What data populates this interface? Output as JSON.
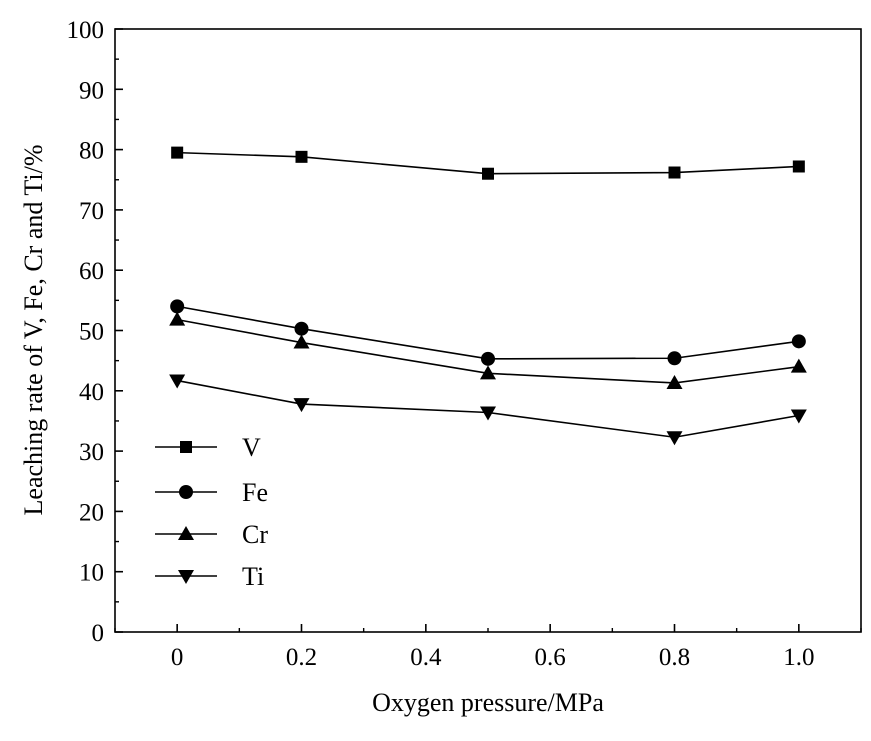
{
  "chart_data": {
    "type": "line",
    "title": "",
    "xlabel": "Oxygen pressure/MPa",
    "ylabel": "Leaching rate of V, Fe, Cr and Ti/%",
    "x": [
      0,
      0.2,
      0.5,
      0.8,
      1.0
    ],
    "xlim": [
      -0.1,
      1.1
    ],
    "ylim": [
      0,
      100
    ],
    "xticks": [
      0,
      0.2,
      0.4,
      0.6,
      0.8,
      1.0
    ],
    "xtick_labels": [
      "0",
      "0.2",
      "0.4",
      "0.6",
      "0.8",
      "1.0"
    ],
    "yticks": [
      0,
      10,
      20,
      30,
      40,
      50,
      60,
      70,
      80,
      90,
      100
    ],
    "ytick_labels": [
      "0",
      "10",
      "20",
      "30",
      "40",
      "50",
      "60",
      "70",
      "80",
      "90",
      "100"
    ],
    "grid": false,
    "legend_position": "bottom-left",
    "series": [
      {
        "name": "V",
        "marker": "square",
        "values": [
          79.5,
          78.8,
          76.0,
          76.2,
          77.2
        ]
      },
      {
        "name": "Fe",
        "marker": "circle",
        "values": [
          54.0,
          50.3,
          45.3,
          45.4,
          48.2
        ]
      },
      {
        "name": "Cr",
        "marker": "triangle-up",
        "values": [
          51.8,
          48.0,
          42.9,
          41.3,
          44.0
        ]
      },
      {
        "name": "Ti",
        "marker": "triangle-down",
        "values": [
          41.7,
          37.8,
          36.4,
          32.3,
          35.9
        ]
      }
    ]
  }
}
